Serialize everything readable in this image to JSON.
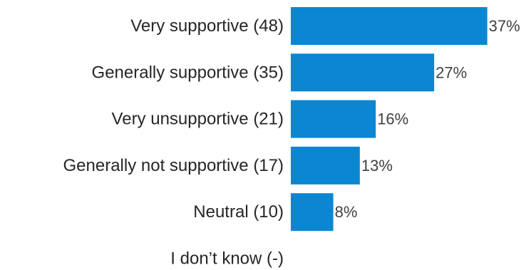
{
  "chart_data": {
    "type": "bar",
    "orientation": "horizontal",
    "categories": [
      "Very supportive (48)",
      "Generally supportive (35)",
      "Very unsupportive (21)",
      "Generally not supportive (17)",
      "Neutral (10)",
      "I don’t know (-)"
    ],
    "values": [
      37,
      27,
      16,
      13,
      8,
      null
    ],
    "value_labels": [
      "37%",
      "27%",
      "16%",
      "13%",
      "8%",
      ""
    ],
    "unit": "%",
    "bar_color": "#0A86D3",
    "title": "",
    "xlabel": "",
    "ylabel": "",
    "grid": false,
    "legend": "none"
  }
}
